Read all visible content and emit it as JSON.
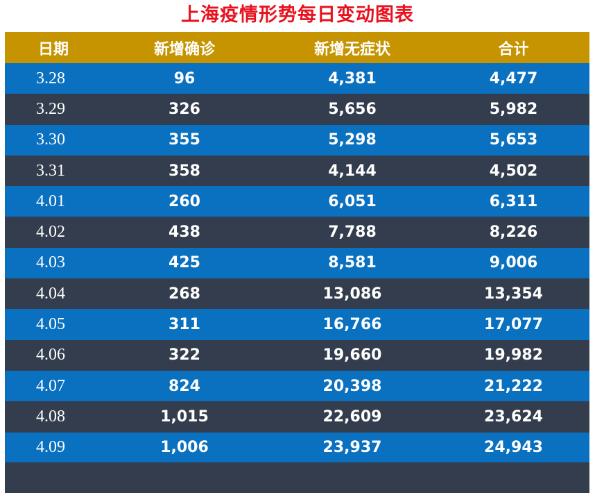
{
  "title": "上海疫情形势每日变动图表",
  "colors": {
    "title": "#e8121f",
    "header_bg": "#c69400",
    "row_blue": "#0a70c0",
    "row_dark": "#333d4d",
    "text": "#ffffff"
  },
  "chart_data": {
    "type": "table",
    "title": "上海疫情形势每日变动图表",
    "columns": [
      "日期",
      "新增确诊",
      "新增无症状",
      "合计"
    ],
    "rows": [
      [
        "3.28",
        "96",
        "4,381",
        "4,477"
      ],
      [
        "3.29",
        "326",
        "5,656",
        "5,982"
      ],
      [
        "3.30",
        "355",
        "5,298",
        "5,653"
      ],
      [
        "3.31",
        "358",
        "4,144",
        "4,502"
      ],
      [
        "4.01",
        "260",
        "6,051",
        "6,311"
      ],
      [
        "4.02",
        "438",
        "7,788",
        "8,226"
      ],
      [
        "4.03",
        "425",
        "8,581",
        "9,006"
      ],
      [
        "4.04",
        "268",
        "13,086",
        "13,354"
      ],
      [
        "4.05",
        "311",
        "16,766",
        "17,077"
      ],
      [
        "4.06",
        "322",
        "19,660",
        "19,982"
      ],
      [
        "4.07",
        "824",
        "20,398",
        "21,222"
      ],
      [
        "4.08",
        "1,015",
        "22,609",
        "23,624"
      ],
      [
        "4.09",
        "1,006",
        "23,937",
        "24,943"
      ]
    ]
  }
}
